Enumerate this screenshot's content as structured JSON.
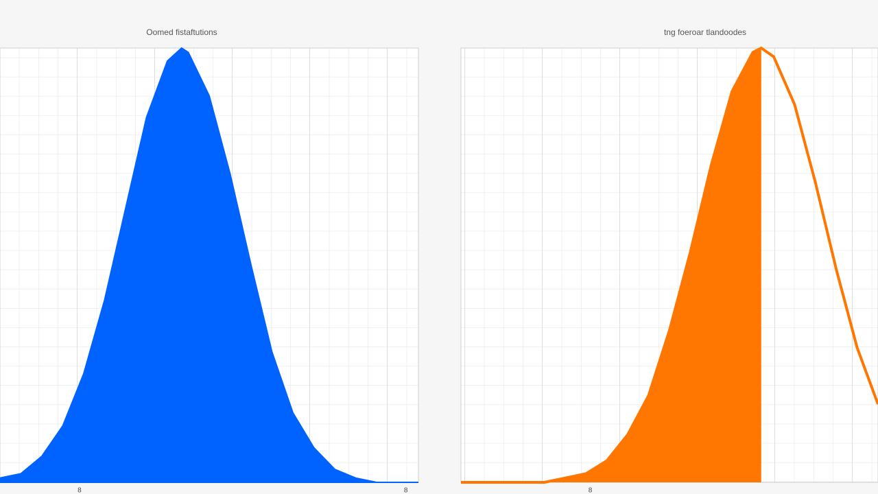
{
  "chart_data": [
    {
      "type": "area",
      "title": "Oomed fistaftutions",
      "color": "#0062ff",
      "x": [
        0,
        0.5,
        1,
        1.5,
        2,
        2.5,
        3,
        3.5,
        4,
        4.34,
        4.5,
        5,
        5.5,
        6,
        6.5,
        7,
        7.5,
        8,
        8.5,
        9,
        9.5,
        10
      ],
      "values": [
        0.01,
        0.02,
        0.06,
        0.13,
        0.25,
        0.42,
        0.63,
        0.84,
        0.97,
        1.0,
        0.99,
        0.89,
        0.71,
        0.5,
        0.3,
        0.16,
        0.08,
        0.03,
        0.01,
        0.0,
        0.0,
        0.0
      ],
      "xlim": [
        0,
        10
      ],
      "ylim": [
        0,
        1
      ],
      "xticks": [
        {
          "value": 1.9,
          "label": "8"
        },
        {
          "value": 9.7,
          "label": "8"
        }
      ],
      "grid": true
    },
    {
      "type": "shaded-line",
      "title": "tng foeroar tlandoodes",
      "color": "#ff7700",
      "x": [
        0,
        0.5,
        1,
        1.5,
        2,
        2.5,
        3,
        3.5,
        4,
        4.5,
        5,
        5.5,
        6,
        6.5,
        7,
        7.2,
        7.5,
        8,
        8.5,
        9,
        9.5,
        10
      ],
      "values": [
        0.0,
        0.0,
        0.0,
        0.0,
        0.0,
        0.01,
        0.02,
        0.05,
        0.11,
        0.2,
        0.35,
        0.53,
        0.73,
        0.9,
        0.99,
        1.0,
        0.98,
        0.87,
        0.69,
        0.49,
        0.31,
        0.18
      ],
      "shade_to": 7.2,
      "xlim": [
        0,
        10
      ],
      "ylim": [
        0,
        1
      ],
      "xticks": [
        {
          "value": 3.1,
          "label": "8"
        }
      ],
      "grid": true
    }
  ]
}
